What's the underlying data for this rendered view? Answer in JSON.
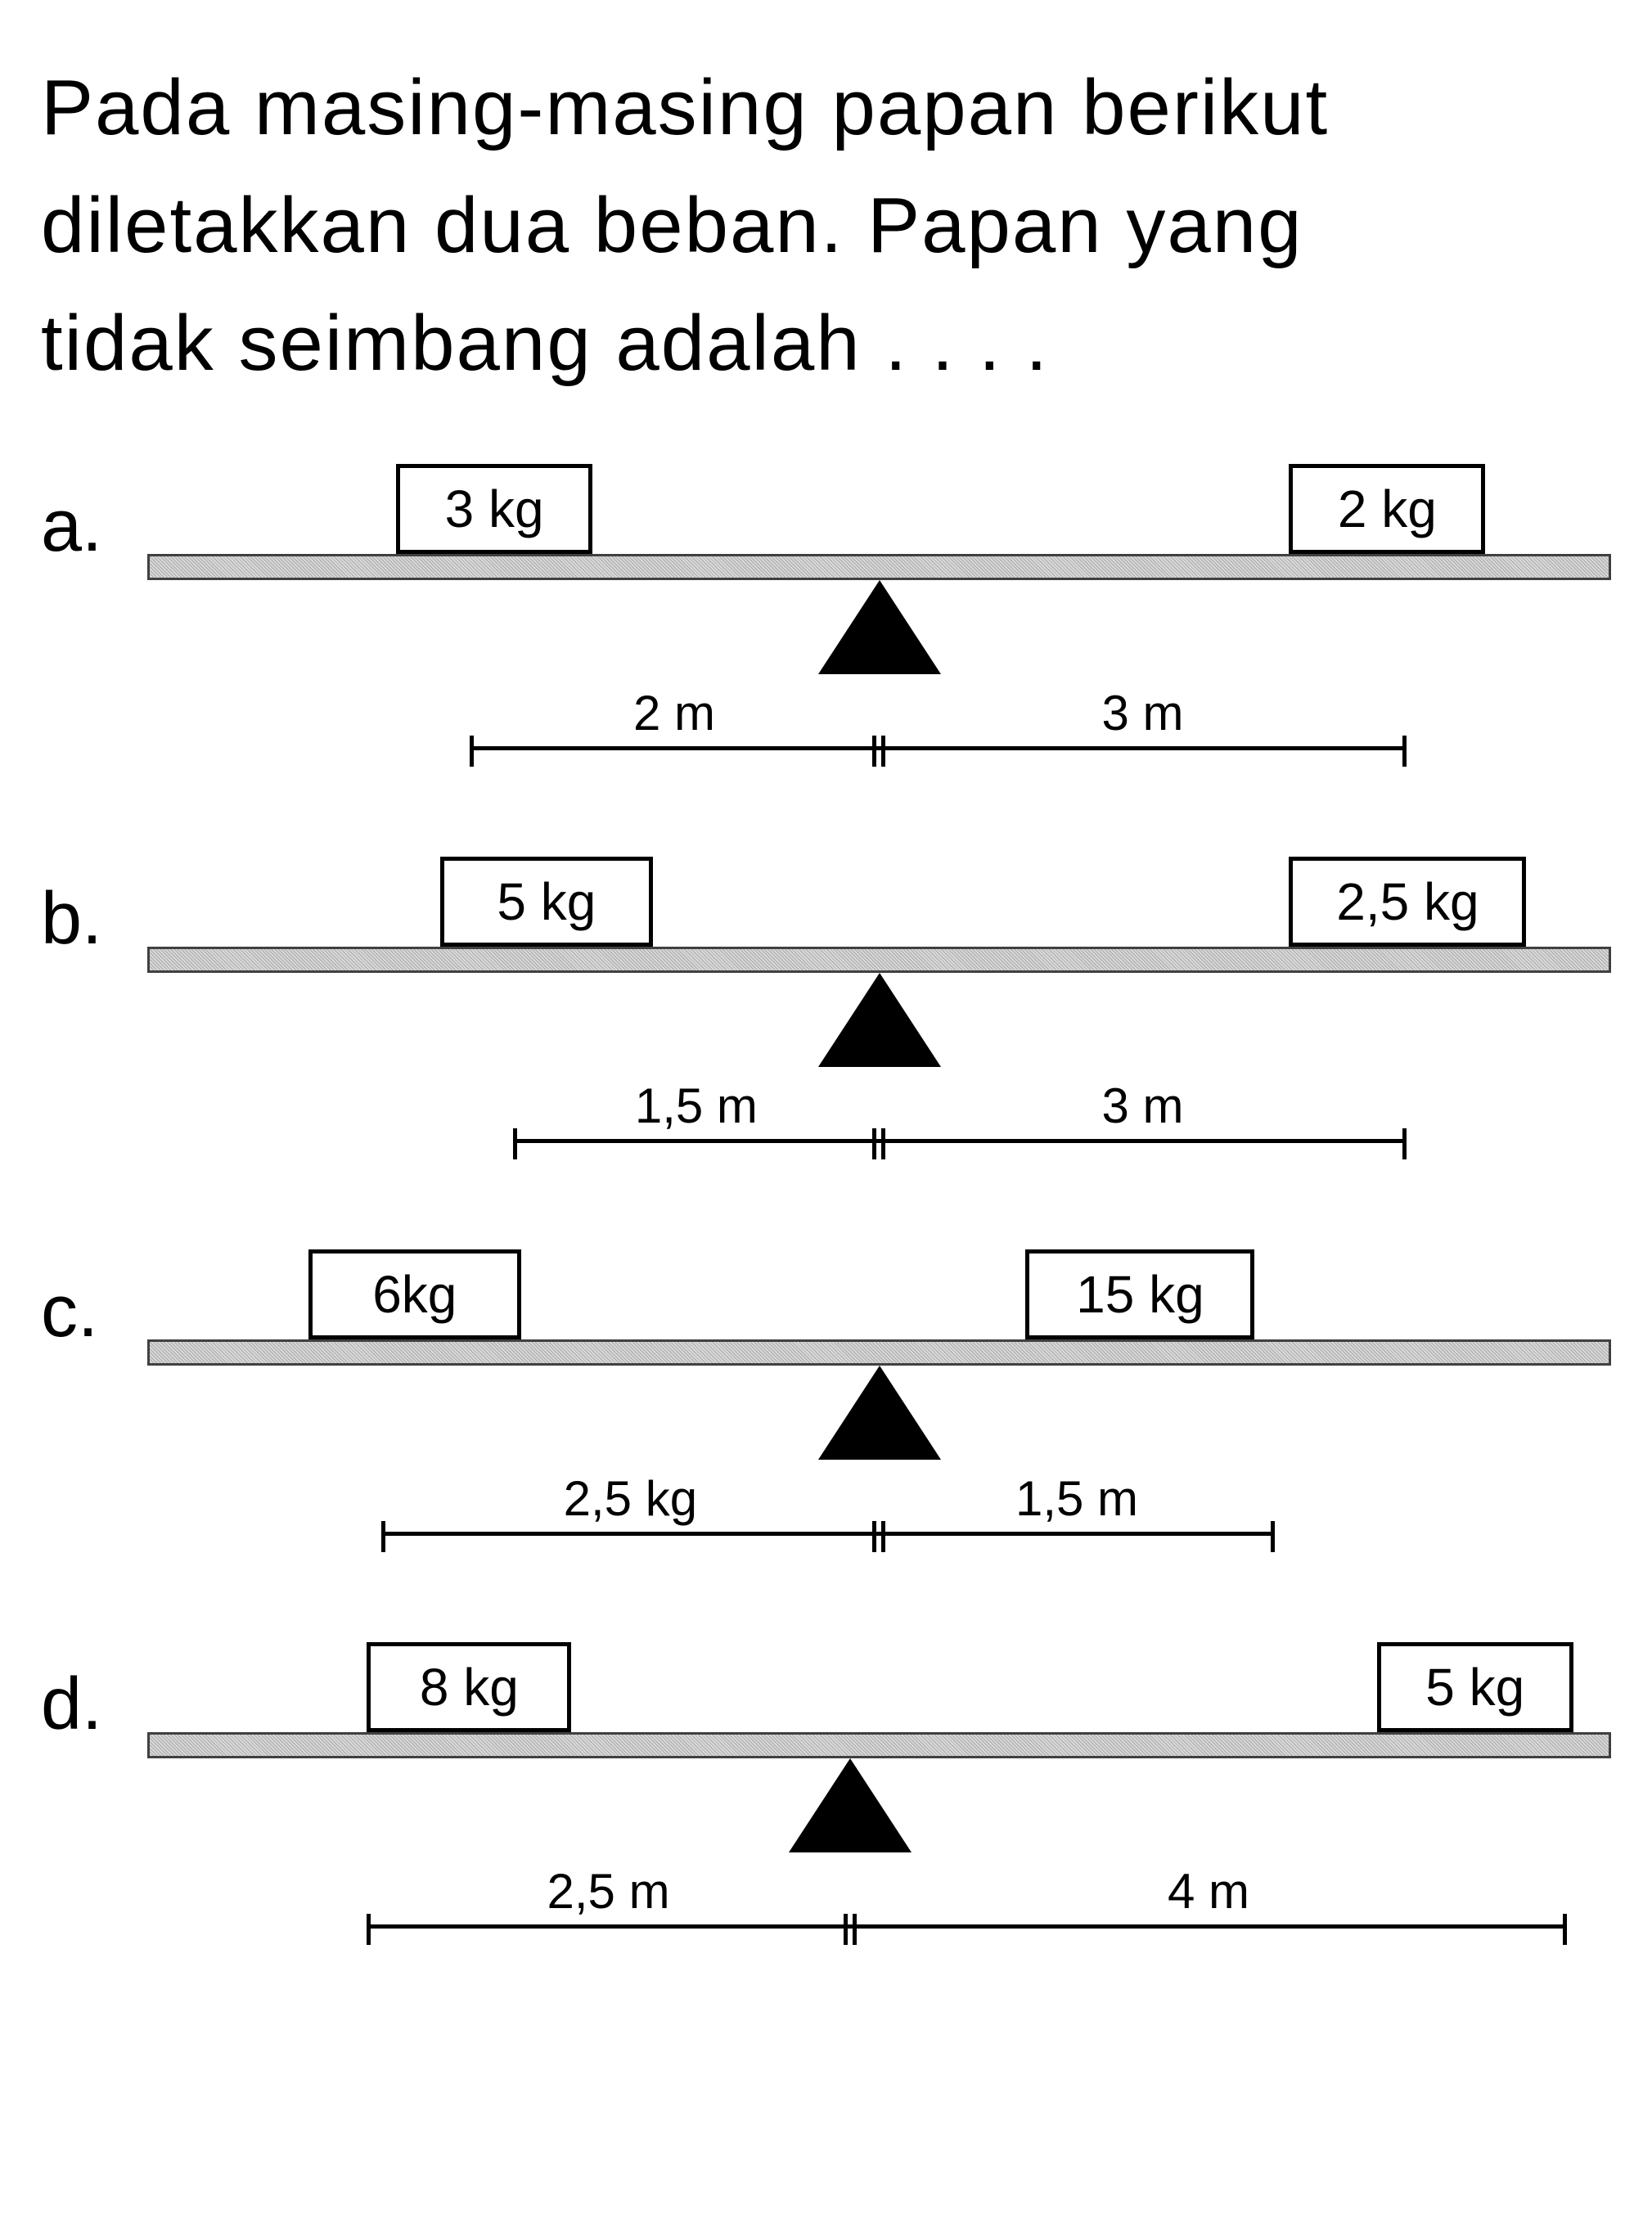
{
  "question": {
    "line1": "Pada masing-masing papan berikut",
    "line2": "diletakkan dua beban. Papan yang",
    "line3": "tidak seimbang adalah . . . ."
  },
  "options": [
    {
      "label": "a.",
      "left_weight": "3 kg",
      "right_weight": "2 kg",
      "left_weight_pos_pct": 17,
      "right_weight_pos_pct": 78,
      "left_weight_width": 240,
      "right_weight_width": 240,
      "fulcrum_pos_pct": 50,
      "dim_left_label": "2 m",
      "dim_right_label": "3 m",
      "dim_start_pct": 22,
      "dim_mid_pct": 50,
      "dim_end_pct": 86
    },
    {
      "label": "b.",
      "left_weight": "5 kg",
      "right_weight": "2,5 kg",
      "left_weight_pos_pct": 20,
      "right_weight_pos_pct": 78,
      "left_weight_width": 260,
      "right_weight_width": 290,
      "fulcrum_pos_pct": 50,
      "dim_left_label": "1,5 m",
      "dim_right_label": "3 m",
      "dim_start_pct": 25,
      "dim_mid_pct": 50,
      "dim_end_pct": 86
    },
    {
      "label": "c.",
      "left_weight": "6kg",
      "right_weight": "15 kg",
      "left_weight_pos_pct": 11,
      "right_weight_pos_pct": 60,
      "left_weight_width": 260,
      "right_weight_width": 280,
      "fulcrum_pos_pct": 50,
      "dim_left_label": "2,5 kg",
      "dim_right_label": "1,5 m",
      "dim_start_pct": 16,
      "dim_mid_pct": 50,
      "dim_end_pct": 77
    },
    {
      "label": "d.",
      "left_weight": "8 kg",
      "right_weight": "5 kg",
      "left_weight_pos_pct": 15,
      "right_weight_pos_pct": 84,
      "left_weight_width": 250,
      "right_weight_width": 240,
      "fulcrum_pos_pct": 48,
      "dim_left_label": "2,5 m",
      "dim_right_label": "4 m",
      "dim_start_pct": 15,
      "dim_mid_pct": 48,
      "dim_end_pct": 97
    }
  ],
  "colors": {
    "text": "#000000",
    "background": "#ffffff",
    "beam_fill": "#d0d0d0",
    "beam_border": "#404040",
    "fulcrum": "#000000"
  },
  "typography": {
    "question_fontsize": 96,
    "option_label_fontsize": 90,
    "weight_fontsize": 64,
    "dim_fontsize": 60
  }
}
